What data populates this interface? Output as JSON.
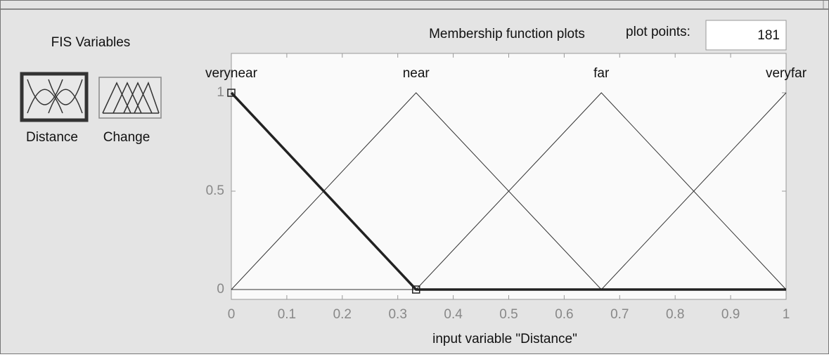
{
  "fis_variables": {
    "title": "FIS Variables",
    "variables": [
      "Distance",
      "Change"
    ]
  },
  "plot_points": {
    "label": "plot points:",
    "value": 181
  },
  "chart_data": {
    "type": "line",
    "title": "Membership function plots",
    "x_label": "input variable \"Distance\"",
    "xlim": [
      0,
      1
    ],
    "ylim": [
      -0.05,
      1.2
    ],
    "xticks": [
      0,
      0.1,
      0.2,
      0.3,
      0.4,
      0.5,
      0.6,
      0.7,
      0.8,
      0.9,
      1
    ],
    "yticks": [
      0,
      0.5,
      1
    ],
    "series": [
      {
        "name": "verynear",
        "color": "#222222",
        "linewidth": 3.5,
        "x": [
          0,
          0.333,
          1
        ],
        "values": [
          1,
          0,
          0
        ]
      },
      {
        "name": "near",
        "color": "#333333",
        "linewidth": 1,
        "x": [
          0,
          0.333,
          0.667,
          1
        ],
        "values": [
          0,
          1,
          0,
          0
        ]
      },
      {
        "name": "far",
        "color": "#333333",
        "linewidth": 1,
        "x": [
          0,
          0.333,
          0.667,
          1
        ],
        "values": [
          0,
          0,
          1,
          0
        ]
      },
      {
        "name": "veryfar",
        "color": "#333333",
        "linewidth": 1,
        "x": [
          0,
          0.667,
          1
        ],
        "values": [
          0,
          0,
          1
        ]
      }
    ]
  }
}
